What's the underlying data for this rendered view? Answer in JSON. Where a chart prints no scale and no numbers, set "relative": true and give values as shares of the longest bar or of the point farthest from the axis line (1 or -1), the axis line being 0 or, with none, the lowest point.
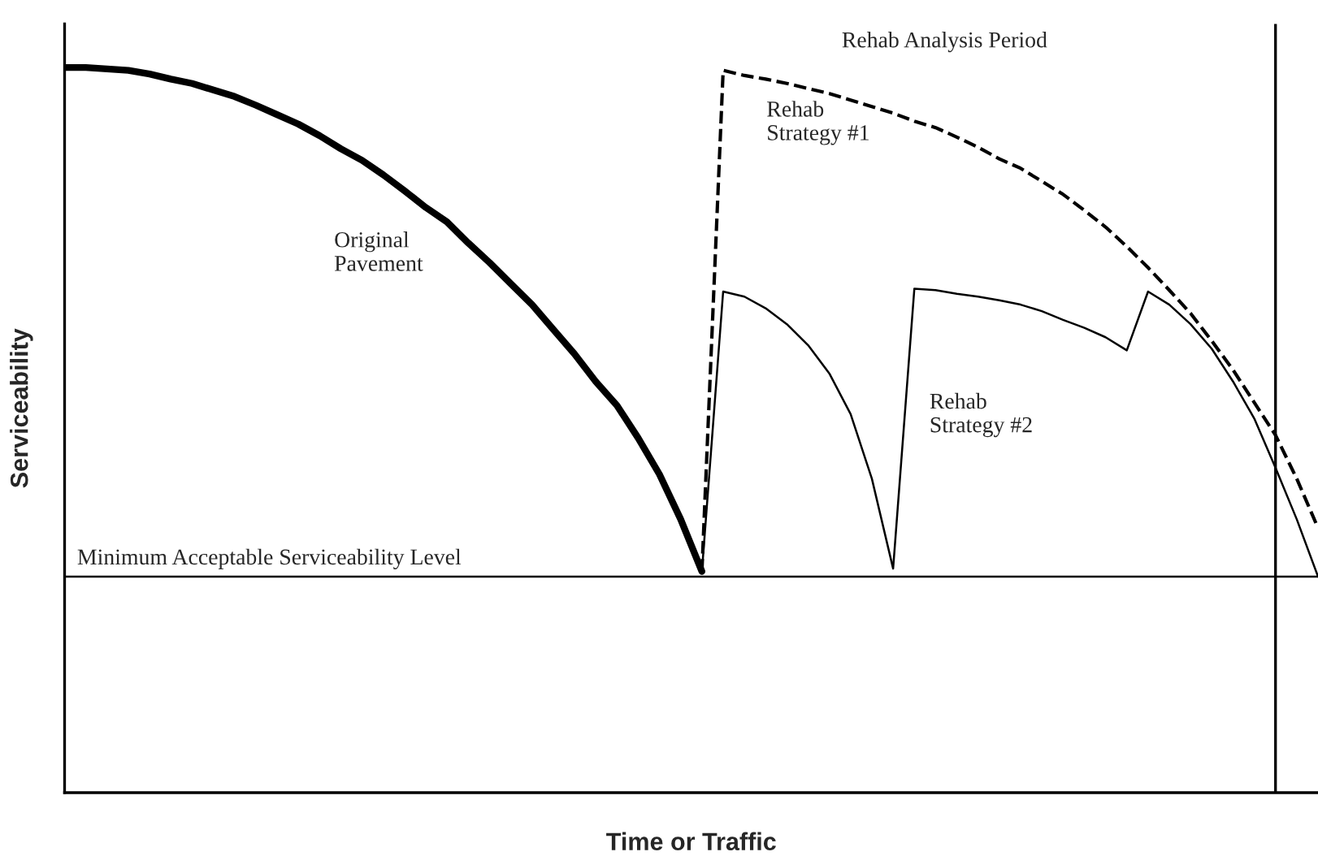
{
  "chart_data": {
    "type": "line",
    "relative": true,
    "xlabel": "Time or Traffic",
    "ylabel": "Serviceability",
    "categories": [
      null,
      null,
      null,
      null,
      null,
      null,
      null,
      null,
      null,
      null,
      null,
      null,
      null,
      null,
      null,
      null,
      null,
      null,
      null,
      null,
      null,
      null,
      null,
      null,
      null,
      null,
      null,
      null,
      null,
      null,
      null,
      null,
      null,
      null,
      null,
      null,
      null,
      null,
      null,
      null,
      null,
      null,
      null,
      null,
      null,
      null,
      null,
      null,
      null,
      null,
      null,
      null,
      null,
      null,
      null,
      null,
      null,
      null,
      null,
      null
    ],
    "series": [
      {
        "name": "Original\nPavement",
        "color": "#000000",
        "line_style": "solid",
        "values": [
          1.0,
          1.0,
          0.998,
          0.996,
          0.991,
          0.984,
          0.978,
          0.969,
          0.96,
          0.948,
          0.935,
          0.922,
          0.906,
          0.888,
          0.872,
          0.852,
          0.83,
          0.807,
          0.787,
          0.758,
          0.731,
          0.702,
          0.673,
          0.639,
          0.605,
          0.567,
          0.534,
          0.489,
          0.439,
          0.377,
          0.305,
          null,
          null,
          null,
          null,
          null,
          null,
          null,
          null,
          null,
          null,
          null,
          null,
          null,
          null,
          null,
          null,
          null,
          null,
          null,
          null,
          null,
          null,
          null,
          null,
          null,
          null,
          null,
          null,
          null
        ]
      },
      {
        "name": "Rehab\nStrategy #1",
        "color": "#000000",
        "line_style": "dashed",
        "values": [
          null,
          null,
          null,
          null,
          null,
          null,
          null,
          null,
          null,
          null,
          null,
          null,
          null,
          null,
          null,
          null,
          null,
          null,
          null,
          null,
          null,
          null,
          null,
          null,
          null,
          null,
          null,
          null,
          null,
          null,
          0.305,
          0.996,
          0.989,
          0.984,
          0.978,
          0.971,
          0.964,
          0.955,
          0.946,
          0.937,
          0.926,
          0.917,
          0.904,
          0.89,
          0.874,
          0.861,
          0.843,
          0.825,
          0.803,
          0.78,
          0.753,
          0.724,
          0.693,
          0.661,
          0.623,
          0.583,
          0.538,
          0.493,
          0.433,
          0.365
        ]
      },
      {
        "name": "Rehab\nStrategy #2",
        "color": "#000000",
        "line_style": "solid",
        "values": [
          null,
          null,
          null,
          null,
          null,
          null,
          null,
          null,
          null,
          null,
          null,
          null,
          null,
          null,
          null,
          null,
          null,
          null,
          null,
          null,
          null,
          null,
          null,
          null,
          null,
          null,
          null,
          null,
          null,
          null,
          0.305,
          0.691,
          0.684,
          0.668,
          0.646,
          0.617,
          0.578,
          0.522,
          0.433,
          0.309,
          0.695,
          0.693,
          0.688,
          0.684,
          0.679,
          0.673,
          0.664,
          0.652,
          0.641,
          0.628,
          0.61,
          0.691,
          0.673,
          0.646,
          0.612,
          0.567,
          0.516,
          0.448,
          0.377,
          0.298
        ]
      }
    ],
    "ref_lines": [
      {
        "axis": "y",
        "value": 0.298,
        "label": "Minimum Acceptable Serviceability Level"
      }
    ],
    "annotations": [
      "Rehab Analysis Period"
    ]
  }
}
